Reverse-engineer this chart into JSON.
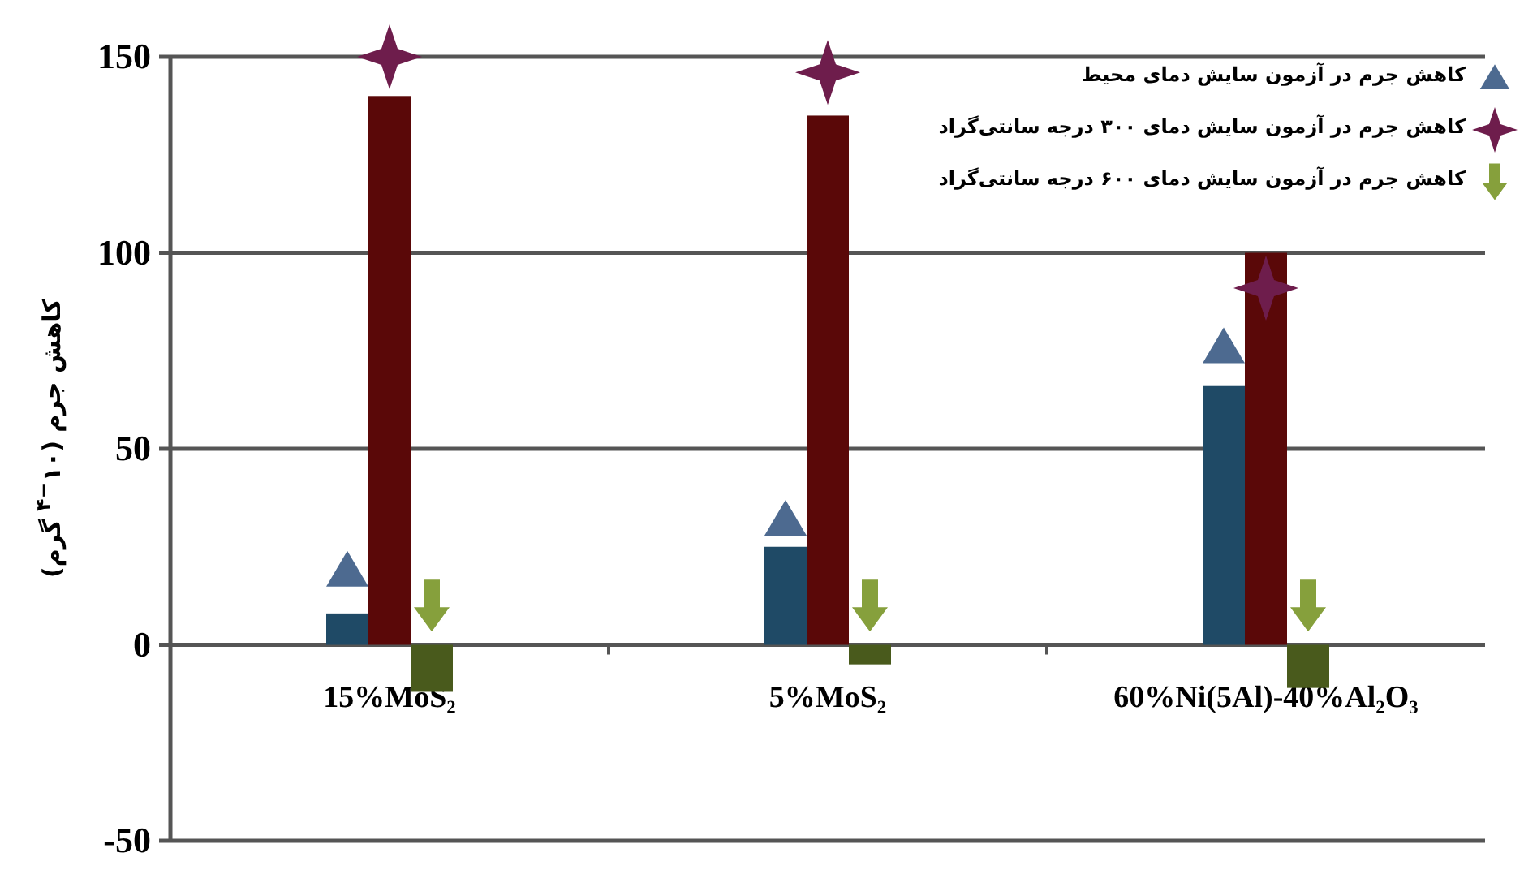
{
  "chart_data": {
    "type": "bar",
    "ylabel": "کاهش جرم (۱۰$^{−۴}$ گرم)",
    "categories": [
      "15%MoS₂",
      "5%MoS₂",
      "60%Ni(5Al)-40%Al₂O₃"
    ],
    "series": [
      {
        "color": "#1f4a66",
        "values": [
          8,
          25,
          66
        ]
      },
      {
        "color": "#5a0808",
        "values": [
          140,
          135,
          100
        ]
      },
      {
        "color": "#495a1c",
        "values": [
          -12,
          -5,
          -11
        ]
      },
      {
        "type": "scatter",
        "marker": "triangle",
        "name": "کاهش جرم در آزمون سایش دمای محیط",
        "color": "#4d6a90",
        "values": [
          19,
          32,
          76
        ]
      },
      {
        "type": "scatter",
        "marker": "star",
        "name": "کاهش جرم در آزمون سایش دمای ۳۰۰ درجه سانتی‌گراد",
        "color": "#6e1d4c",
        "values": [
          150,
          146,
          91
        ]
      },
      {
        "type": "scatter",
        "name": "کاهش جرم در آزمون سایش دمای ۶۰۰ درجه سانتی‌گراد",
        "color": "#86a03c",
        "values": [
          10,
          10,
          10
        ]
      }
    ],
    "ylim": [
      -50,
      150
    ],
    "yticks": [
      -50,
      0,
      50,
      100,
      150
    ],
    "grid": "y",
    "legend": "top right"
  }
}
